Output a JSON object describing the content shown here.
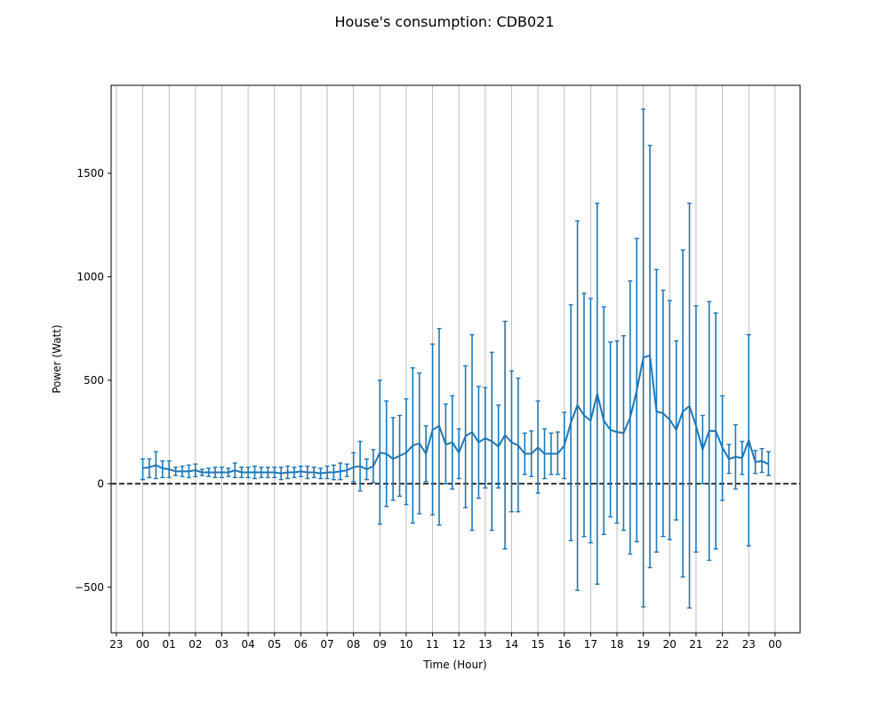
{
  "chart_data": {
    "type": "line",
    "title": "House's consumption: CDB021",
    "xlabel": "Time (Hour)",
    "ylabel": "Power (Watt)",
    "x_tick_labels": [
      "23",
      "00",
      "01",
      "02",
      "03",
      "04",
      "05",
      "06",
      "07",
      "08",
      "09",
      "10",
      "11",
      "12",
      "13",
      "14",
      "15",
      "16",
      "17",
      "18",
      "19",
      "20",
      "21",
      "22",
      "23",
      "00"
    ],
    "x_range_hours": [
      -1.2,
      24.95
    ],
    "y_ticks": [
      -500,
      0,
      500,
      1000,
      1500
    ],
    "y_tick_labels": [
      "−500",
      "0",
      "500",
      "1000",
      "1500"
    ],
    "ylim": [
      -720,
      1925
    ],
    "grid": "vertical",
    "reference_line": {
      "y": 0,
      "style": "dashed",
      "color": "#000000"
    },
    "series": [
      {
        "color": "#1f77b4",
        "x_hours": [
          0,
          0.25,
          0.5,
          0.75,
          1,
          1.25,
          1.5,
          1.75,
          2,
          2.25,
          2.5,
          2.75,
          3,
          3.25,
          3.5,
          3.75,
          4,
          4.25,
          4.5,
          4.75,
          5,
          5.25,
          5.5,
          5.75,
          6,
          6.25,
          6.5,
          6.75,
          7,
          7.25,
          7.5,
          7.75,
          8,
          8.25,
          8.5,
          8.75,
          9,
          9.25,
          9.5,
          9.75,
          10,
          10.25,
          10.5,
          10.75,
          11,
          11.25,
          11.5,
          11.75,
          12,
          12.25,
          12.5,
          12.75,
          13,
          13.25,
          13.5,
          13.75,
          14,
          14.25,
          14.5,
          14.75,
          15,
          15.25,
          15.5,
          15.75,
          16,
          16.25,
          16.5,
          16.75,
          17,
          17.25,
          17.5,
          17.75,
          18,
          18.25,
          18.5,
          18.75,
          19,
          19.25,
          19.5,
          19.75,
          20,
          20.25,
          20.5,
          20.75,
          21,
          21.25,
          21.5,
          21.75,
          22,
          22.25,
          22.5,
          22.75,
          23,
          23.25,
          23.5,
          23.75
        ],
        "values": [
          75,
          80,
          90,
          75,
          70,
          60,
          60,
          60,
          65,
          55,
          55,
          55,
          55,
          55,
          65,
          55,
          55,
          55,
          55,
          55,
          55,
          50,
          55,
          55,
          60,
          55,
          55,
          50,
          55,
          55,
          60,
          65,
          80,
          85,
          70,
          85,
          150,
          145,
          120,
          135,
          150,
          185,
          195,
          145,
          260,
          280,
          190,
          200,
          150,
          230,
          250,
          200,
          220,
          205,
          180,
          235,
          200,
          185,
          145,
          145,
          175,
          145,
          145,
          145,
          185,
          295,
          380,
          330,
          305,
          435,
          305,
          260,
          250,
          245,
          320,
          450,
          610,
          620,
          350,
          340,
          310,
          260,
          350,
          375,
          280,
          165,
          255,
          255,
          175,
          120,
          130,
          125,
          210,
          105,
          110,
          95
        ],
        "err_upper": [
          120,
          120,
          155,
          110,
          110,
          80,
          85,
          90,
          95,
          70,
          75,
          80,
          80,
          75,
          100,
          80,
          80,
          85,
          80,
          80,
          80,
          80,
          85,
          80,
          85,
          85,
          80,
          75,
          85,
          90,
          100,
          95,
          150,
          205,
          120,
          165,
          500,
          400,
          320,
          330,
          410,
          560,
          535,
          280,
          675,
          750,
          385,
          425,
          265,
          570,
          720,
          470,
          465,
          635,
          380,
          785,
          545,
          510,
          245,
          255,
          400,
          265,
          245,
          250,
          345,
          865,
          1270,
          920,
          895,
          1355,
          855,
          685,
          690,
          715,
          980,
          1185,
          1810,
          1635,
          1035,
          935,
          885,
          690,
          1130,
          1355,
          860,
          330,
          880,
          825,
          425,
          190,
          285,
          205,
          720,
          160,
          170,
          155
        ],
        "err_lower": [
          20,
          30,
          25,
          30,
          30,
          40,
          35,
          30,
          35,
          40,
          35,
          30,
          30,
          35,
          30,
          30,
          30,
          25,
          30,
          30,
          30,
          20,
          25,
          30,
          35,
          25,
          30,
          25,
          25,
          20,
          20,
          35,
          10,
          -35,
          20,
          5,
          -195,
          -110,
          -80,
          -60,
          -100,
          -190,
          -145,
          10,
          -150,
          -200,
          0,
          -25,
          25,
          -115,
          -225,
          -70,
          -20,
          -225,
          -20,
          -315,
          -135,
          -135,
          45,
          35,
          -45,
          25,
          45,
          45,
          25,
          -275,
          -515,
          -255,
          -285,
          -485,
          -245,
          -160,
          -190,
          -225,
          -340,
          -280,
          -595,
          -405,
          -330,
          -255,
          -270,
          -175,
          -450,
          -600,
          -330,
          0,
          -370,
          -315,
          -80,
          50,
          -25,
          45,
          -300,
          50,
          55,
          40
        ]
      }
    ]
  }
}
